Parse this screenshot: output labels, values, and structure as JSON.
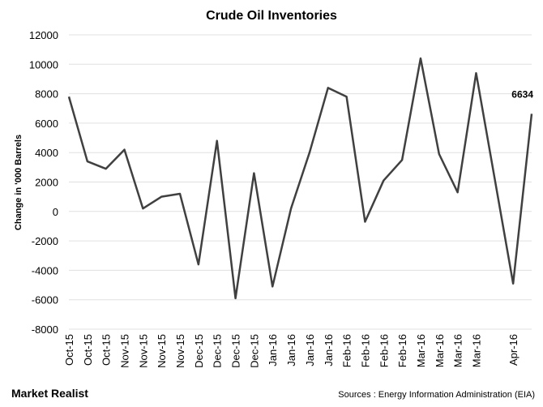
{
  "chart_data": {
    "type": "line",
    "title": "Crude Oil Inventories",
    "y_label": "Change in '000 Barrels",
    "categories": [
      "Oct-15",
      "Oct-15",
      "Oct-15",
      "Nov-15",
      "Nov-15",
      "Nov-15",
      "Nov-15",
      "Dec-15",
      "Dec-15",
      "Dec-15",
      "Dec-15",
      "Jan-16",
      "Jan-16",
      "Jan-16",
      "Jan-16",
      "Feb-16",
      "Feb-16",
      "Feb-16",
      "Feb-16",
      "Mar-16",
      "Mar-16",
      "Mar-16",
      "Mar-16",
      null,
      "Apr-16",
      null
    ],
    "series": [
      {
        "name": "Crude Oil Inventories",
        "color": "#404040",
        "values": [
          7800,
          3400,
          2900,
          4200,
          200,
          1000,
          1200,
          -3600,
          4800,
          -5900,
          2600,
          -5100,
          200,
          4000,
          8400,
          7800,
          -700,
          2100,
          3500,
          10400,
          3900,
          1300,
          9400,
          2250,
          -4900,
          6634
        ]
      }
    ],
    "annotation": "6634",
    "ylim": [
      -8000,
      12000
    ],
    "yticks": [
      -8000,
      -6000,
      -4000,
      -2000,
      0,
      2000,
      4000,
      6000,
      8000,
      10000,
      12000
    ],
    "grid": true,
    "brand": "Market Realist",
    "source": "Sources : Energy Information Administration (EIA)"
  }
}
